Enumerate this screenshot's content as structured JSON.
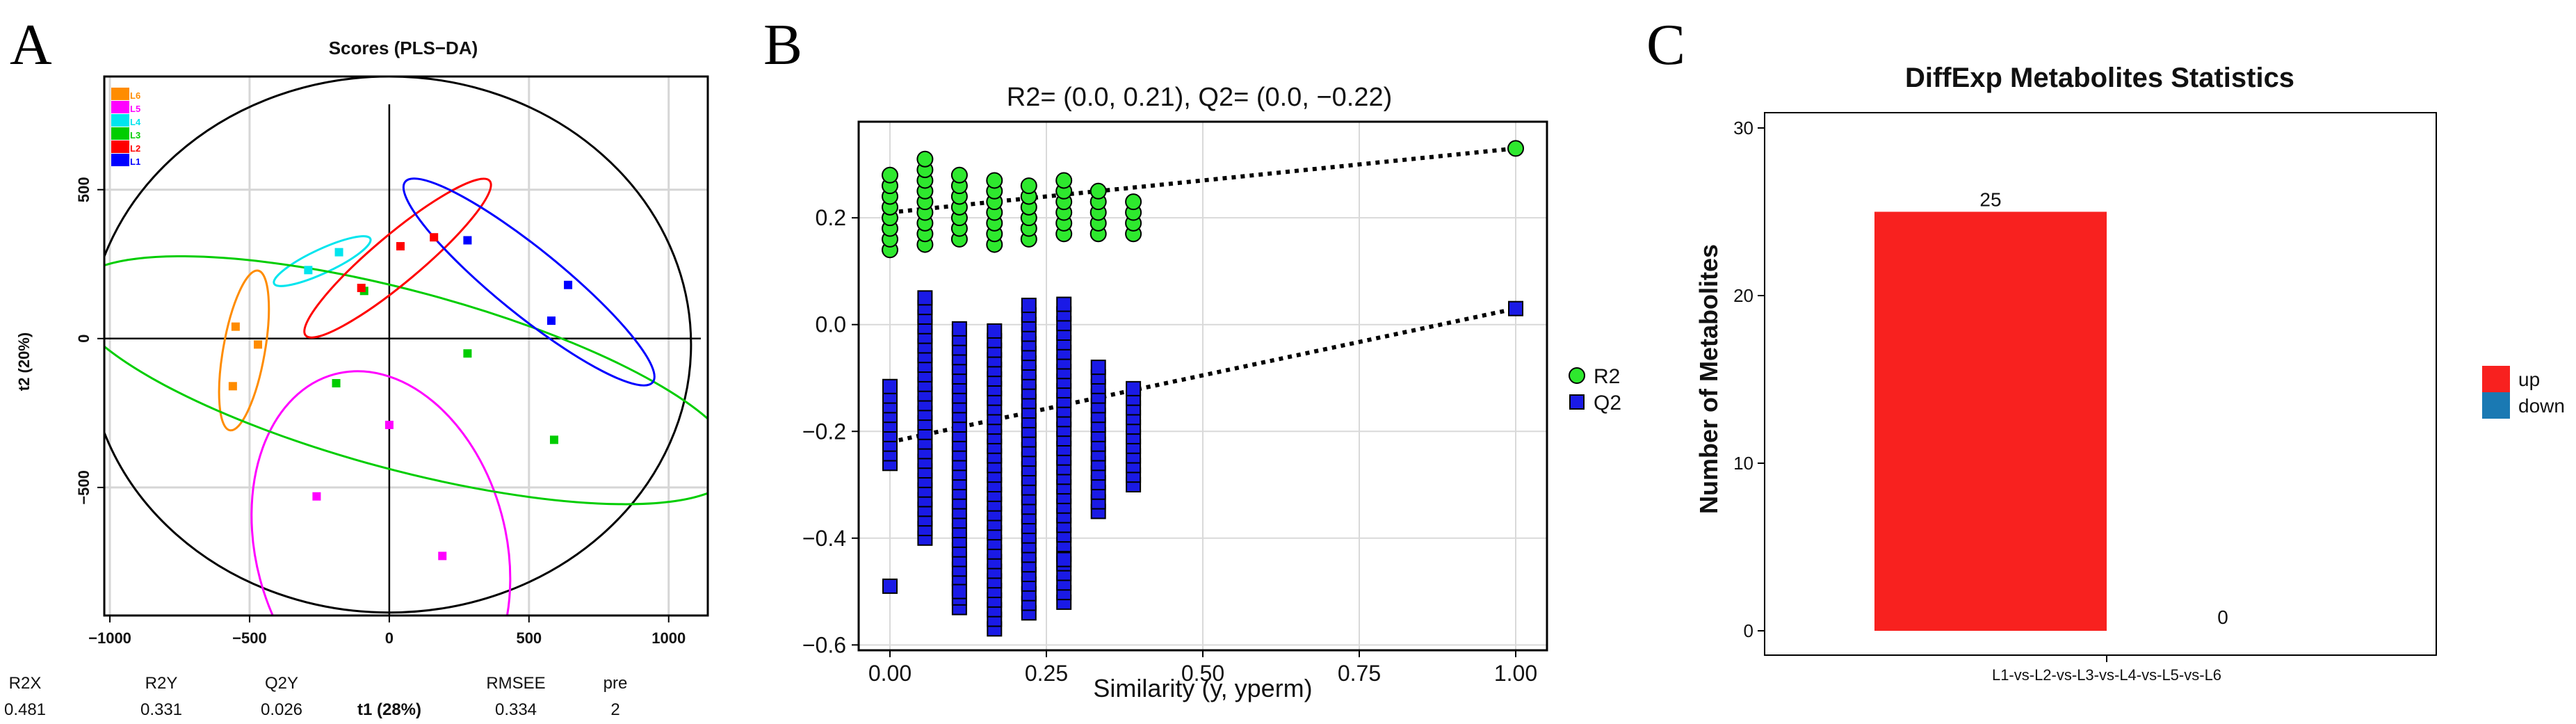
{
  "chart_data": [
    {
      "panel": "A",
      "type": "scatter",
      "title": "Scores (PLS−DA)",
      "xlabel": "t1 (28%)",
      "ylabel": "t2 (20%)",
      "xlim": [
        -1020,
        1140
      ],
      "ylim": [
        -930,
        880
      ],
      "x_ticks": [
        -1000,
        -500,
        0,
        500,
        1000
      ],
      "x_tick_labels": [
        "−1000",
        "−500",
        "0",
        "500",
        "1000"
      ],
      "y_ticks": [
        -500,
        0,
        500
      ],
      "y_tick_labels": [
        "−500",
        "0",
        "500"
      ],
      "grid": true,
      "legend": [
        {
          "name": "L6",
          "color": "#FF8C00"
        },
        {
          "name": "L5",
          "color": "#FF00FF"
        },
        {
          "name": "L4",
          "color": "#00E5EE"
        },
        {
          "name": "L3",
          "color": "#00CD00"
        },
        {
          "name": "L2",
          "color": "#FF0000"
        },
        {
          "name": "L1",
          "color": "#0000FF"
        }
      ],
      "series": [
        {
          "name": "L6",
          "color": "#FF8C00",
          "points": [
            [
              -550,
              40
            ],
            [
              -470,
              -20
            ],
            [
              -560,
              -160
            ]
          ],
          "ellipse": {
            "cx": -520,
            "cy": -40,
            "rx": 290,
            "ry": 70,
            "angle": 80
          }
        },
        {
          "name": "L5",
          "color": "#FF00FF",
          "points": [
            [
              -260,
              -530
            ],
            [
              0,
              -290
            ],
            [
              190,
              -730
            ]
          ],
          "ellipse": {
            "cx": -30,
            "cy": -700,
            "rx": 640,
            "ry": 420,
            "angle": -75
          }
        },
        {
          "name": "L4",
          "color": "#00E5EE",
          "points": [
            [
              -290,
              230
            ],
            [
              -180,
              290
            ]
          ],
          "ellipse": {
            "cx": -240,
            "cy": 260,
            "rx": 190,
            "ry": 40,
            "angle": 25
          }
        },
        {
          "name": "L3",
          "color": "#00CD00",
          "points": [
            [
              -190,
              -150
            ],
            [
              -90,
              160
            ],
            [
              280,
              -50
            ],
            [
              590,
              -340
            ]
          ],
          "ellipse": {
            "cx": 50,
            "cy": -140,
            "rx": 1230,
            "ry": 300,
            "angle": -15
          }
        },
        {
          "name": "L2",
          "color": "#FF0000",
          "points": [
            [
              -100,
              170
            ],
            [
              40,
              310
            ],
            [
              160,
              340
            ]
          ],
          "ellipse": {
            "cx": 30,
            "cy": 270,
            "rx": 430,
            "ry": 80,
            "angle": 40
          }
        },
        {
          "name": "L1",
          "color": "#0000FF",
          "points": [
            [
              280,
              330
            ],
            [
              580,
              60
            ],
            [
              640,
              180
            ]
          ],
          "ellipse": {
            "cx": 500,
            "cy": 190,
            "rx": 570,
            "ry": 110,
            "angle": -39
          }
        }
      ],
      "confidence_ellipse": {
        "cx": 0,
        "cy": -20,
        "rx": 1080,
        "ry": 900
      },
      "stats": {
        "headers": [
          "R2X",
          "R2Y",
          "Q2Y",
          "t1 (28%)",
          "RMSEE",
          "pre"
        ],
        "values": [
          "0.481",
          "0.331",
          "0.026",
          "",
          "0.334",
          "2"
        ]
      }
    },
    {
      "panel": "B",
      "type": "scatter",
      "title": "R2= (0.0, 0.21), Q2= (0.0, −0.22)",
      "xlabel": "Similarity (y, yperm)",
      "ylabel": "",
      "xlim": [
        -0.05,
        1.05
      ],
      "ylim": [
        -0.61,
        0.38
      ],
      "x_ticks": [
        0,
        0.25,
        0.5,
        0.75,
        1
      ],
      "x_tick_labels": [
        "0.00",
        "0.25",
        "0.50",
        "0.75",
        "1.00"
      ],
      "y_ticks": [
        -0.6,
        -0.4,
        -0.2,
        0,
        0.2
      ],
      "y_tick_labels": [
        "−0.6",
        "−0.4",
        "−0.2",
        "0.0",
        "0.2"
      ],
      "grid": true,
      "legend_position": "right",
      "series": [
        {
          "name": "R2",
          "color": "#2EE82E",
          "marker": "circle",
          "perm_x": [
            0.0,
            0.056,
            0.111,
            0.167,
            0.222,
            0.278,
            0.333,
            0.389
          ],
          "perm_y_min": [
            0.14,
            0.15,
            0.16,
            0.15,
            0.16,
            0.17,
            0.17,
            0.17
          ],
          "perm_y_max": [
            0.28,
            0.31,
            0.28,
            0.27,
            0.27,
            0.27,
            0.25,
            0.24
          ],
          "actual": [
            1.0,
            0.33
          ],
          "fit_line": {
            "intercept": 0.21,
            "slope": 0.12
          }
        },
        {
          "name": "Q2",
          "color": "#1A1AE6",
          "marker": "square",
          "perm_x": [
            0.0,
            0.056,
            0.111,
            0.167,
            0.222,
            0.278,
            0.333,
            0.389
          ],
          "perm_y_min": [
            -0.26,
            -0.4,
            -0.53,
            -0.57,
            -0.54,
            -0.52,
            -0.35,
            -0.3
          ],
          "perm_y_max": [
            -0.11,
            0.05,
            0.0,
            0.0,
            0.04,
            0.04,
            -0.07,
            -0.12
          ],
          "outliers": [
            [
              0.0,
              -0.49
            ],
            [
              0.111,
              -0.5
            ],
            [
              0.278,
              -0.44
            ]
          ],
          "actual": [
            1.0,
            0.03
          ],
          "fit_line": {
            "intercept": -0.22,
            "slope": 0.25
          }
        }
      ]
    },
    {
      "panel": "C",
      "type": "bar",
      "title": "DiffExp Metabolites Statistics",
      "xlabel": "",
      "ylabel": "Number of Metabolites",
      "categories": [
        "L1-vs-L2-vs-L3-vs-L4-vs-L5-vs-L6"
      ],
      "series": [
        {
          "name": "up",
          "color": "#F8211F",
          "values": [
            25
          ]
        },
        {
          "name": "down",
          "color": "#1A79B3",
          "values": [
            0
          ]
        }
      ],
      "data_labels": [
        "25",
        "0"
      ],
      "ylim": [
        0,
        32
      ],
      "y_ticks": [
        0,
        10,
        20,
        30
      ],
      "y_tick_labels": [
        "0",
        "10",
        "20",
        "30"
      ],
      "grid": false,
      "legend_position": "right"
    }
  ],
  "panel_labels": [
    "A",
    "B",
    "C"
  ]
}
